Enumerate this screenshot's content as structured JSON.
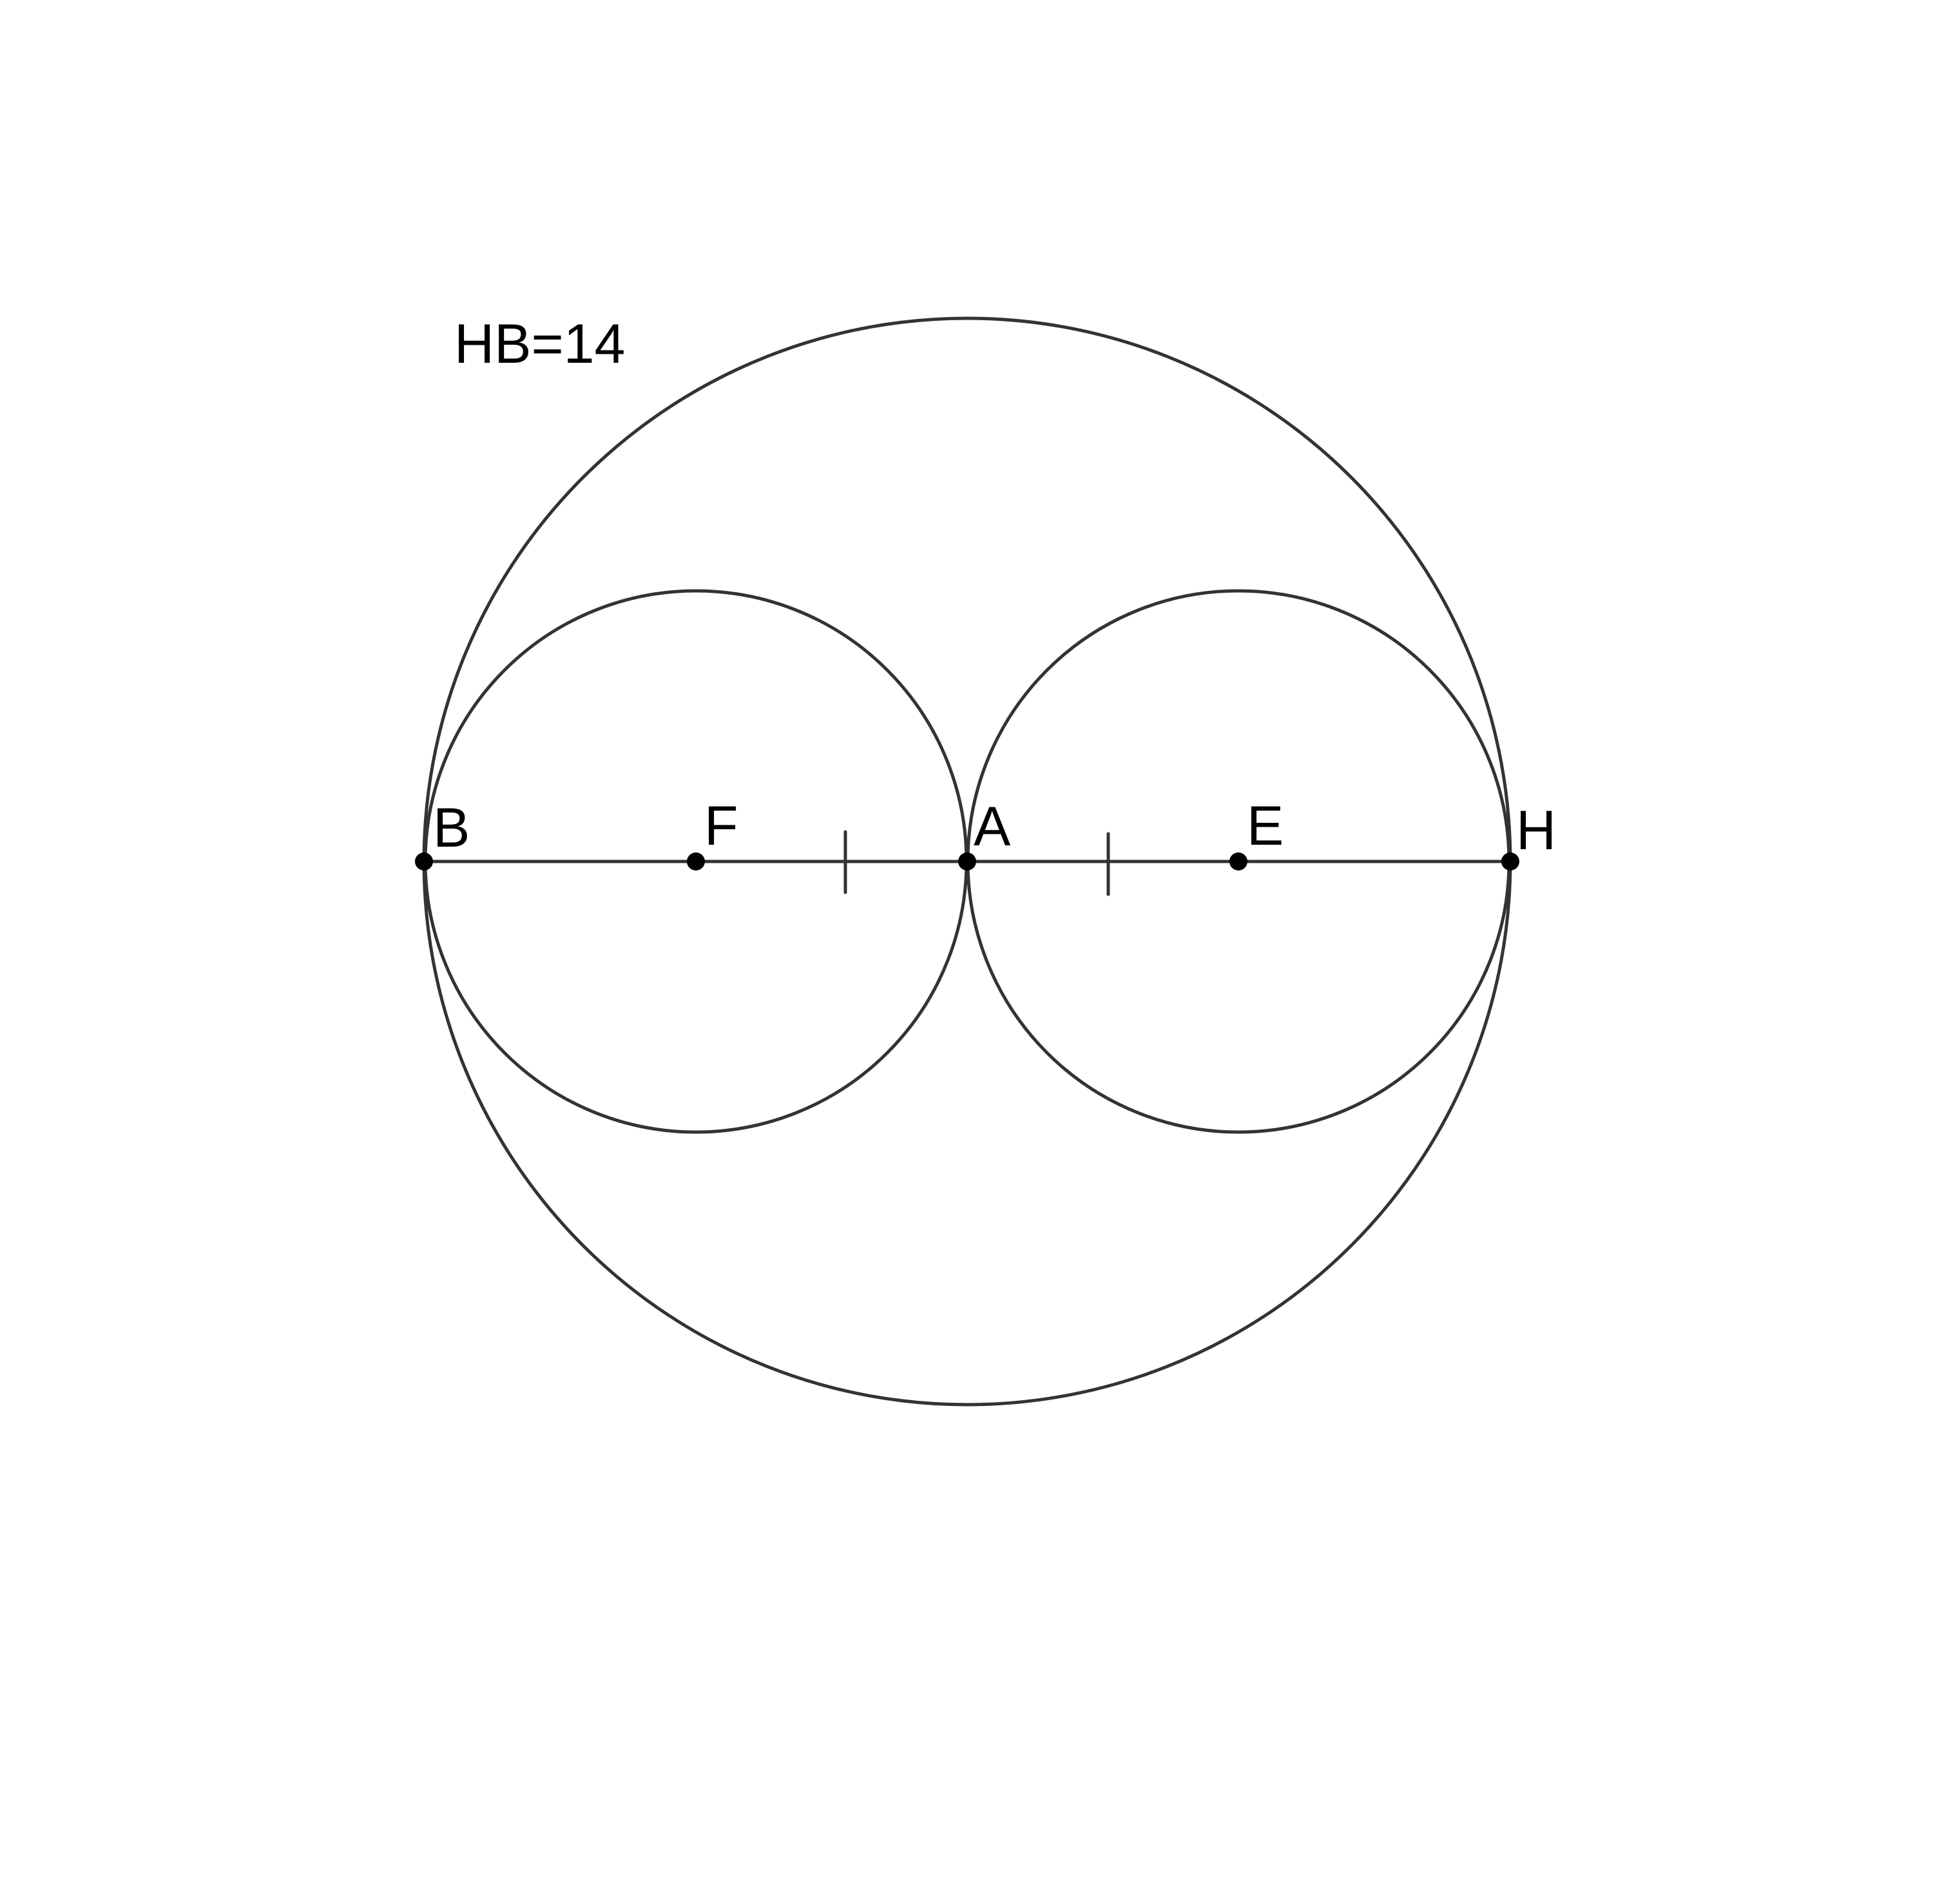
{
  "figure": {
    "caption": "HB=14",
    "colors": {
      "stroke": "#333333",
      "point": "#000000",
      "text": "#000000",
      "background": "#ffffff"
    },
    "points": {
      "B": "B",
      "F": "F",
      "A": "A",
      "E": "E",
      "H": "H"
    },
    "circles": [
      {
        "name": "large-circle",
        "center": "A",
        "diameter": "HB"
      },
      {
        "name": "left-circle",
        "center": "F",
        "diameter": "BA"
      },
      {
        "name": "right-circle",
        "center": "E",
        "diameter": "AH"
      }
    ],
    "segments": [
      {
        "name": "segment-BH",
        "from": "B",
        "to": "H"
      }
    ],
    "equal_length_marks": [
      "FA",
      "AE"
    ]
  }
}
